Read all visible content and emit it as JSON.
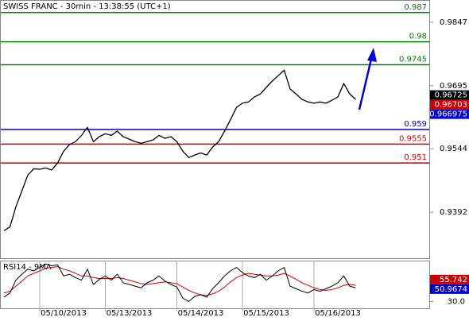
{
  "chart_data": {
    "type": "line",
    "title": "SWISS FRANC - 30min - 13:38:55 (UTC+1)",
    "categories": [
      null,
      null,
      null,
      null,
      null,
      null,
      null,
      null,
      null,
      null,
      "05/10/2013",
      null,
      null,
      null,
      null,
      null,
      null,
      null,
      null,
      null,
      null,
      "05/13/2013",
      null,
      null,
      null,
      null,
      null,
      null,
      null,
      null,
      null,
      null,
      null,
      "05/14/2013",
      null,
      null,
      null,
      null,
      null,
      null,
      null,
      null,
      null,
      null,
      "05/15/2013",
      null,
      null,
      null,
      null,
      null,
      null,
      null,
      null,
      null,
      null,
      null,
      "05/16/2013",
      null,
      null,
      null
    ],
    "values": [
      0.9348,
      0.9357,
      0.9405,
      0.9443,
      0.9481,
      0.9496,
      0.9495,
      0.9498,
      0.9493,
      0.951,
      0.9538,
      0.9554,
      0.9561,
      0.9576,
      0.9595,
      0.9561,
      0.9573,
      0.958,
      0.9576,
      0.9586,
      0.9573,
      0.9567,
      0.9561,
      0.9557,
      0.9561,
      0.9565,
      0.9576,
      0.9569,
      0.9573,
      0.9561,
      0.9538,
      0.9523,
      0.9529,
      0.9534,
      0.9529,
      0.9548,
      0.9561,
      0.9586,
      0.9614,
      0.9643,
      0.9653,
      0.9656,
      0.9668,
      0.9675,
      0.9691,
      0.9706,
      0.9719,
      0.9732,
      0.9687,
      0.9675,
      0.9662,
      0.9656,
      0.9653,
      0.9656,
      0.9653,
      0.966,
      0.9668,
      0.97,
      0.9675,
      0.9662
    ],
    "color": "#000000",
    "ylim": [
      0.9282,
      0.99
    ],
    "yticks": [
      0.9847,
      0.9695,
      0.9544,
      0.9392
    ],
    "levels": [
      {
        "value": 0.987,
        "color": "#008000"
      },
      {
        "value": 0.98,
        "color": "#008000"
      },
      {
        "value": 0.9745,
        "color": "#008000"
      },
      {
        "value": 0.959,
        "color": "#0000cc"
      },
      {
        "value": 0.9555,
        "color": "#cc0000"
      },
      {
        "value": 0.951,
        "color": "#cc0000"
      }
    ],
    "tags": [
      {
        "value": 0.96725,
        "color": "#000000"
      },
      {
        "value": 0.96703,
        "color": "#cc0000"
      },
      {
        "value": 0.966975,
        "color": "#0000cc"
      }
    ],
    "rsi": {
      "title": "RSI14 - 9MA",
      "values": [
        35,
        40,
        55,
        62,
        68,
        66,
        70,
        74,
        72,
        73,
        60,
        62,
        58,
        55,
        68,
        50,
        56,
        60,
        55,
        62,
        52,
        50,
        48,
        46,
        52,
        55,
        60,
        54,
        50,
        47,
        34,
        30,
        36,
        38,
        35,
        45,
        52,
        60,
        66,
        70,
        64,
        60,
        58,
        62,
        55,
        60,
        66,
        70,
        48,
        45,
        42,
        40,
        44,
        42,
        45,
        48,
        52,
        60,
        48,
        46
      ],
      "ma": [
        40,
        42,
        48,
        54,
        60,
        63,
        66,
        69,
        70,
        71,
        68,
        66,
        63,
        60,
        60,
        58,
        57,
        57,
        57,
        58,
        57,
        55,
        53,
        51,
        50,
        51,
        52,
        53,
        52,
        51,
        47,
        43,
        40,
        38,
        37,
        39,
        42,
        47,
        53,
        58,
        61,
        63,
        62,
        61,
        60,
        60,
        61,
        63,
        60,
        56,
        52,
        49,
        46,
        44,
        43,
        44,
        46,
        49,
        50,
        49
      ],
      "color": "#000000",
      "ma_color": "#cc0000",
      "ylim": [
        22,
        78
      ],
      "yticks": [
        {
          "value": 30,
          "label": "30.0"
        }
      ],
      "tags": [
        {
          "value": 55.742,
          "color": "#cc0000"
        },
        {
          "value": 50.9674,
          "color": "#0000cc"
        }
      ]
    }
  }
}
